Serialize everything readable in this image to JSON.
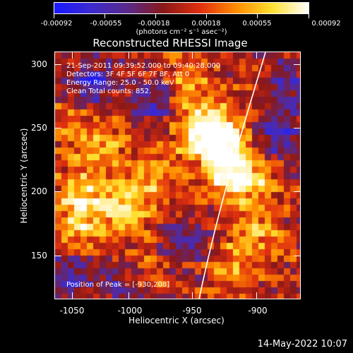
{
  "colorbar": {
    "tick_labels": [
      "-0.00092",
      "-0.00055",
      "-0.00018",
      "0.00018",
      "0.00055",
      "0.00092"
    ],
    "units_label": "(photons cm⁻² s⁻¹ asec⁻²)",
    "colors": [
      "#1a1aff",
      "#3c2bd0",
      "#5a2a8c",
      "#8a1818",
      "#e03010",
      "#ff8c00",
      "#ffe030",
      "#ffffff"
    ]
  },
  "title": "Reconstructed RHESSI Image",
  "info": {
    "line1": "21-Sep-2011 09:39:52.000 to 09:40:28.000",
    "line2": "Detectors: 3F 4F 5F 6F 7F 8F, Att 0",
    "line3": "Energy Range: 25.0 - 50.0 keV",
    "line4": "Clean     Total counts: 852.",
    "peak": "Position of Peak = [-930,208]"
  },
  "x_axis": {
    "title": "Heliocentric X (arcsec)",
    "ticks": [
      "-1050",
      "-1000",
      "-950",
      "-900"
    ]
  },
  "y_axis": {
    "title": "Heliocentric Y (arcsec)",
    "ticks": [
      "300",
      "250",
      "200",
      "150"
    ]
  },
  "footer": {
    "date": "14-May-2022 10:07"
  },
  "chart_data": {
    "type": "heatmap",
    "title": "Reconstructed RHESSI Image",
    "xlabel": "Heliocentric X (arcsec)",
    "ylabel": "Heliocentric Y (arcsec)",
    "xlim": [
      -1062,
      -872
    ],
    "ylim": [
      115,
      308
    ],
    "zlim": [
      -0.00092,
      0.00092
    ],
    "peak": [
      -930,
      208
    ],
    "colormap": "rainbow-hot",
    "bright_regions": [
      {
        "x": -932,
        "y": 240,
        "value": 0.00092
      },
      {
        "x": -950,
        "y": 248,
        "value": 0.0008
      },
      {
        "x": -926,
        "y": 212,
        "value": 0.0009
      },
      {
        "x": -1008,
        "y": 185,
        "value": 0.0007
      },
      {
        "x": -1040,
        "y": 200,
        "value": 0.0006
      },
      {
        "x": -1045,
        "y": 170,
        "value": 0.00055
      },
      {
        "x": -985,
        "y": 210,
        "value": 0.0005
      },
      {
        "x": -1025,
        "y": 235,
        "value": 0.00045
      },
      {
        "x": -905,
        "y": 165,
        "value": 0.00045
      },
      {
        "x": -925,
        "y": 140,
        "value": 0.0004
      },
      {
        "x": -960,
        "y": 285,
        "value": 0.0004
      },
      {
        "x": -1000,
        "y": 135,
        "value": 0.0004
      },
      {
        "x": -900,
        "y": 205,
        "value": 0.00035
      },
      {
        "x": -1050,
        "y": 260,
        "value": 0.0003
      }
    ],
    "dark_regions": [
      {
        "x": -1035,
        "y": 282,
        "value": -0.0006
      },
      {
        "x": -985,
        "y": 270,
        "value": -0.0005
      },
      {
        "x": -890,
        "y": 240,
        "value": -0.0005
      },
      {
        "x": -960,
        "y": 160,
        "value": -0.0004
      },
      {
        "x": -1010,
        "y": 128,
        "value": -0.0006
      },
      {
        "x": -880,
        "y": 280,
        "value": -0.0004
      },
      {
        "x": -1055,
        "y": 130,
        "value": -0.0005
      }
    ]
  }
}
